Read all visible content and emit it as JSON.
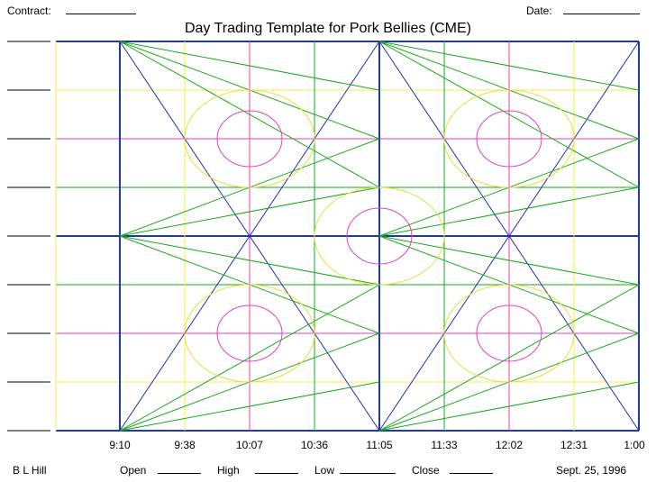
{
  "header": {
    "contract_label": "Contract:",
    "date_label": "Date:",
    "title": "Day Trading Template for Pork Bellies (CME)"
  },
  "time_axis": {
    "ticks": [
      "9:10",
      "9:38",
      "10:07",
      "10:36",
      "11:05",
      "11:33",
      "12:02",
      "12:31",
      "1:00"
    ]
  },
  "footer": {
    "author": "B L Hill",
    "open_label": "Open",
    "high_label": "High",
    "low_label": "Low",
    "close_label": "Close",
    "date": "Sept. 25, 1996"
  },
  "colors": {
    "grid_main": "#1c3aa8",
    "grid_green": "#1aaa1a",
    "grid_yellow": "#f0f04a",
    "grid_magenta": "#e040c0",
    "fan_green": "#1aaa1a",
    "fan_blue": "#2030b0",
    "circle_yellow": "#e8e040",
    "circle_magenta": "#e040c0"
  }
}
